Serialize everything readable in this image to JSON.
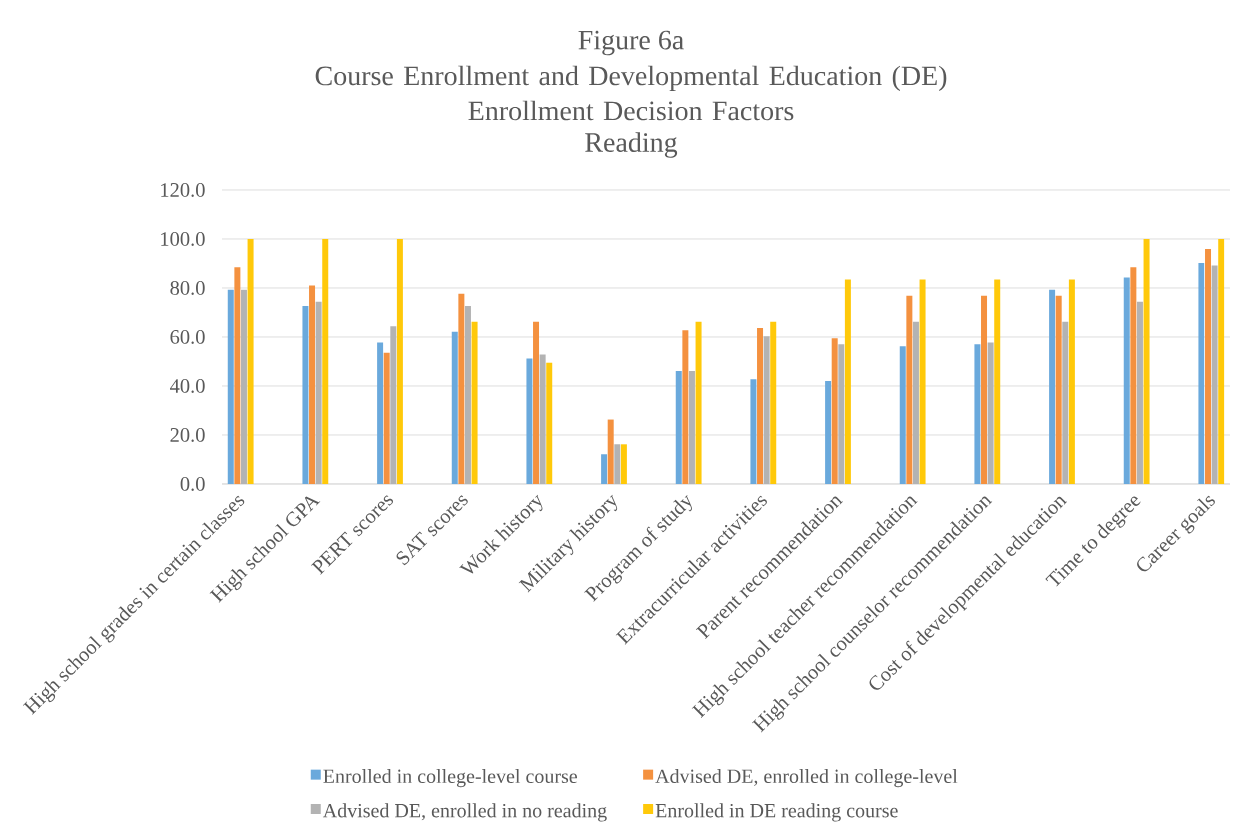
{
  "chart_data": {
    "type": "bar",
    "annotations": [
      "Figure 6a"
    ],
    "title": "Course Enrollment and Developmental Education (DE) Enrollment Decision Factors",
    "subtitle": "Reading",
    "categories": [
      "High school grades in certain classes",
      "High school GPA",
      "PERT scores",
      "SAT scores",
      "Work history",
      "Military history",
      "Program of study",
      "Extracurricular activities",
      "Parent recommendation",
      "High school teacher recommendation",
      "High school counselor recommendation",
      "Cost of developmental education",
      "Time to degree",
      "Career goals"
    ],
    "series": [
      {
        "name": "Enrolled in college-level course",
        "color": "#6aa9dc",
        "values": [
          79.3,
          72.7,
          57.8,
          62.1,
          51.2,
          12.1,
          46.1,
          42.8,
          42.0,
          56.2,
          57.0,
          79.3,
          84.3,
          90.2
        ]
      },
      {
        "name": "Advised DE, enrolled in college-level",
        "color": "#f4913f",
        "values": [
          88.5,
          81.0,
          53.6,
          77.6,
          66.2,
          26.3,
          62.8,
          63.7,
          59.5,
          76.8,
          76.8,
          76.8,
          88.5,
          95.9
        ]
      },
      {
        "name": "Advised DE, enrolled in no reading",
        "color": "#b3b3b3",
        "values": [
          79.3,
          74.4,
          64.4,
          72.7,
          52.9,
          16.2,
          46.1,
          60.3,
          57.0,
          66.2,
          57.8,
          66.2,
          74.4,
          89.2
        ]
      },
      {
        "name": "Enrolled in DE reading course",
        "color": "#ffc90a",
        "values": [
          100,
          100,
          100,
          66.2,
          49.5,
          16.2,
          66.2,
          66.2,
          83.5,
          83.5,
          83.5,
          83.5,
          100,
          100
        ]
      }
    ],
    "ylim": [
      0,
      120
    ],
    "yticks": [
      {
        "value": 0,
        "label": "0.0"
      },
      {
        "value": 20,
        "label": "20.0"
      },
      {
        "value": 40,
        "label": "40.0"
      },
      {
        "value": 60,
        "label": "60.0"
      },
      {
        "value": 80,
        "label": "80.0"
      },
      {
        "value": 100,
        "label": "100.0"
      },
      {
        "value": 120,
        "label": "120.0"
      }
    ],
    "grid": "y",
    "legend": "bottom"
  }
}
